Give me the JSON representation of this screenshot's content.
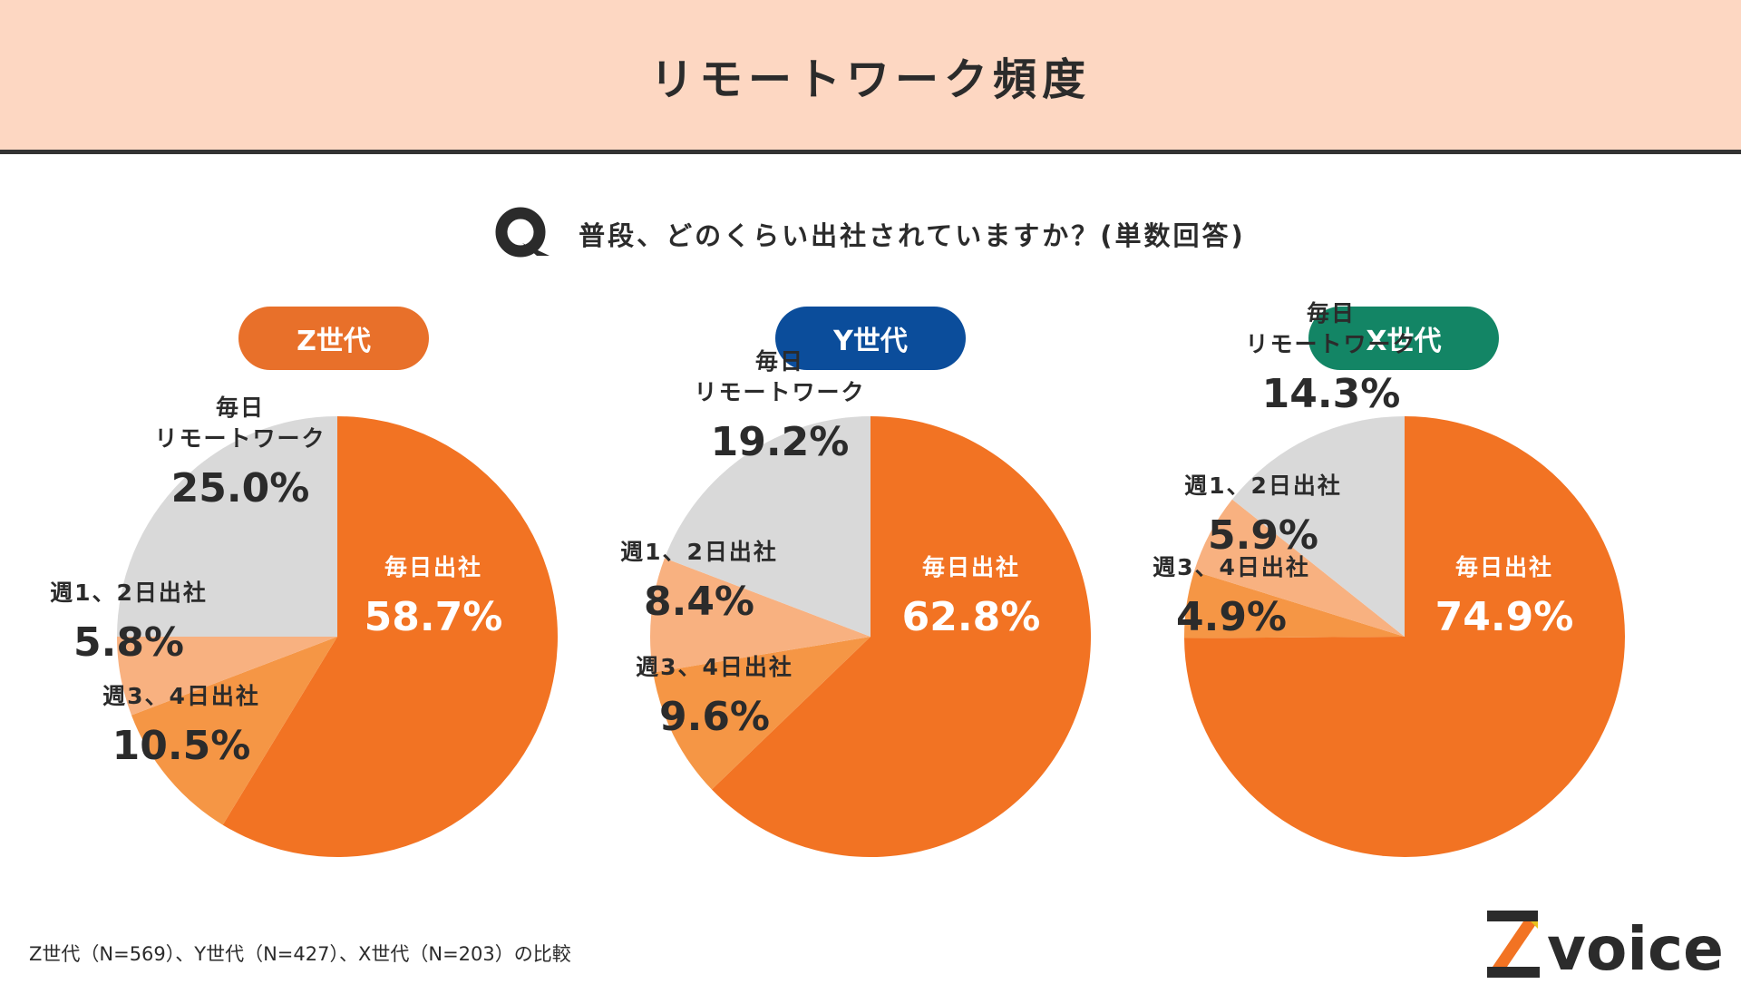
{
  "header": {
    "title": "リモートワーク頻度"
  },
  "question": {
    "icon": "q-icon",
    "text": "普段、どのくらい出社されていますか？(単数回答)"
  },
  "colors": {
    "header_bg": "#fdd7c2",
    "office_daily": "#f27323",
    "three_four_days": "#f59645",
    "one_two_days": "#f8b180",
    "remote_daily": "#d9d9d9",
    "z_badge": "#e8702a",
    "y_badge": "#0b4d9b",
    "x_badge": "#138565"
  },
  "chart_data": [
    {
      "type": "pie",
      "title": "Z世代",
      "badge_color": "#e8702a",
      "categories": [
        "毎日出社",
        "週3、4日出社",
        "週1、2日出社",
        "毎日リモートワーク"
      ],
      "values": [
        58.7,
        10.5,
        5.8,
        25.0
      ],
      "labels": [
        {
          "lines": [
            "毎日出社"
          ],
          "value": "58.7%"
        },
        {
          "lines": [
            "週3、4日出社"
          ],
          "value": "10.5%"
        },
        {
          "lines": [
            "週1、2日出社"
          ],
          "value": "5.8%"
        },
        {
          "lines": [
            "毎日",
            "リモートワーク"
          ],
          "value": "25.0%"
        }
      ]
    },
    {
      "type": "pie",
      "title": "Y世代",
      "badge_color": "#0b4d9b",
      "categories": [
        "毎日出社",
        "週3、4日出社",
        "週1、2日出社",
        "毎日リモートワーク"
      ],
      "values": [
        62.8,
        9.6,
        8.4,
        19.2
      ],
      "labels": [
        {
          "lines": [
            "毎日出社"
          ],
          "value": "62.8%"
        },
        {
          "lines": [
            "週3、4日出社"
          ],
          "value": "9.6%"
        },
        {
          "lines": [
            "週1、2日出社"
          ],
          "value": "8.4%"
        },
        {
          "lines": [
            "毎日",
            "リモートワーク"
          ],
          "value": "19.2%"
        }
      ]
    },
    {
      "type": "pie",
      "title": "X世代",
      "badge_color": "#138565",
      "categories": [
        "毎日出社",
        "週3、4日出社",
        "週1、2日出社",
        "毎日リモートワーク"
      ],
      "values": [
        74.9,
        4.9,
        5.9,
        14.3
      ],
      "labels": [
        {
          "lines": [
            "毎日出社"
          ],
          "value": "74.9%"
        },
        {
          "lines": [
            "週3、4日出社"
          ],
          "value": "4.9%"
        },
        {
          "lines": [
            "週1、2日出社"
          ],
          "value": "5.9%"
        },
        {
          "lines": [
            "毎日",
            "リモートワーク"
          ],
          "value": "14.3%"
        }
      ]
    }
  ],
  "footnote": "Z世代（N=569）、Y世代（N=427）、X世代（N=203）の比較",
  "logo": {
    "text": "voice",
    "mark": "Z"
  }
}
